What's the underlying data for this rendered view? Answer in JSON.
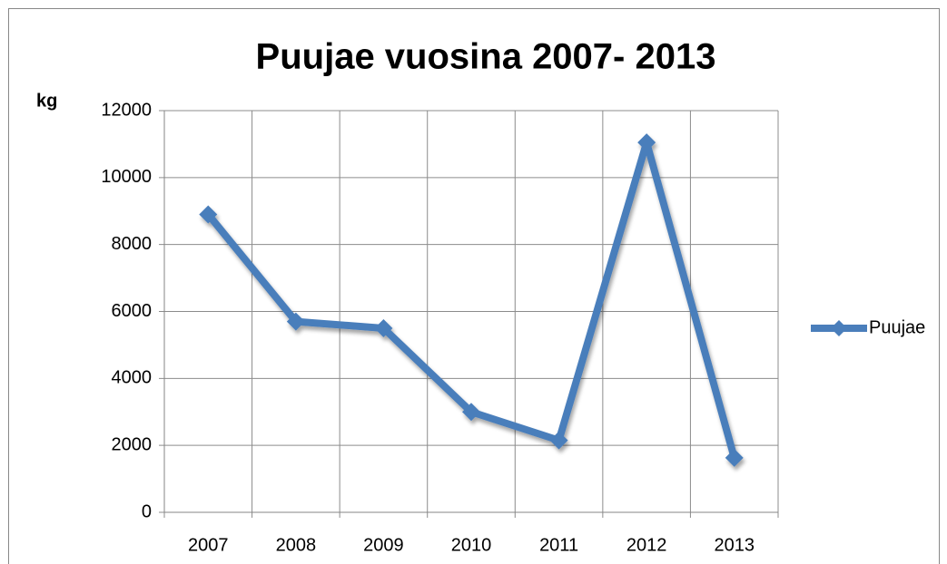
{
  "chart_data": {
    "type": "line",
    "title": "Puujae vuosina 2007- 2013",
    "y_label": "kg",
    "categories": [
      "2007",
      "2008",
      "2009",
      "2010",
      "2011",
      "2012",
      "2013"
    ],
    "series": [
      {
        "name": "Puujae",
        "color": "#4a7ebb",
        "values": [
          8900,
          5700,
          5500,
          3000,
          2150,
          11050,
          1630
        ]
      }
    ],
    "ylim": [
      0,
      12000
    ],
    "yticks": [
      0,
      2000,
      4000,
      6000,
      8000,
      10000,
      12000
    ],
    "grid": true,
    "legend": "right"
  }
}
